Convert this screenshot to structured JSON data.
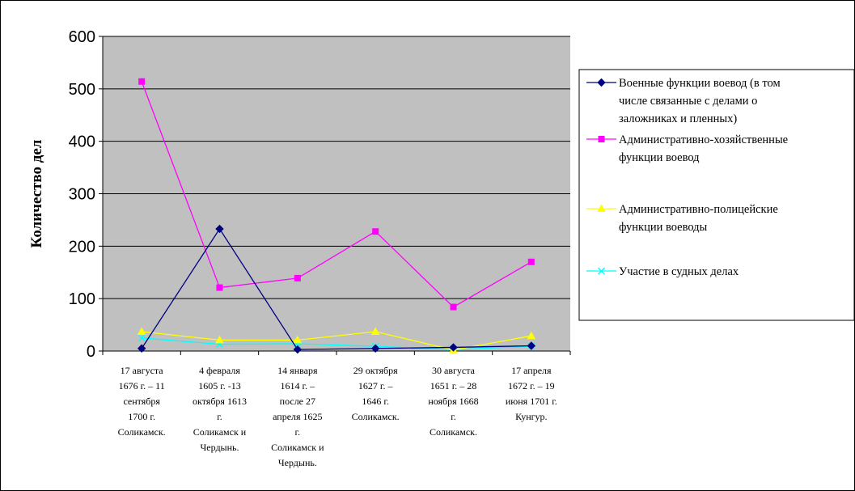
{
  "chart_data": {
    "type": "line",
    "title": "",
    "xlabel": "",
    "ylabel": "Количество дел",
    "ylim": [
      0,
      600
    ],
    "yticks": [
      0,
      100,
      200,
      300,
      400,
      500,
      600
    ],
    "grid": true,
    "legend_position": "right",
    "plot_background": "#c0c0c0",
    "categories": [
      [
        "17 августа",
        "1676 г. – 11",
        "сентября",
        "1700 г.",
        "Соликамск."
      ],
      [
        "4 февраля",
        "1605 г. -13",
        "октября 1613",
        "г.",
        "Соликамск и",
        "Чердынь."
      ],
      [
        "14 января",
        "1614 г. –",
        "после 27",
        "апреля 1625",
        "г.",
        "Соликамск и",
        "Чердынь."
      ],
      [
        "29 октября",
        "1627 г. –",
        "1646 г.",
        "Соликамск."
      ],
      [
        "30 августа",
        "1651 г. – 28",
        "ноября 1668",
        "г.",
        "Соликамск."
      ],
      [
        "17 апреля",
        "1672 г. – 19",
        "июня 1701 г.",
        "Кунгур."
      ]
    ],
    "series": [
      {
        "name": "Военные функции воевод (в том числе связанные с делами о заложниках и пленных)",
        "legend_lines": [
          "Военные функции воевод (в том",
          "числе связанные с делами о",
          "заложниках и пленных)"
        ],
        "color": "#000080",
        "marker": "diamond",
        "values": [
          5,
          233,
          3,
          5,
          7,
          10
        ]
      },
      {
        "name": "Административно-хозяйственные функции воевод",
        "legend_lines": [
          "Административно-хозяйственные",
          "функции воевод"
        ],
        "color": "#ff00ff",
        "marker": "square",
        "values": [
          514,
          121,
          139,
          228,
          84,
          170
        ]
      },
      {
        "name": "Административно-полицейские функции воеводы",
        "legend_lines": [
          "Административно-полицейские",
          "функции воеводы"
        ],
        "color": "#ffff00",
        "marker": "triangle",
        "values": [
          37,
          21,
          21,
          37,
          2,
          29
        ]
      },
      {
        "name": "Участие в судных делах",
        "legend_lines": [
          "Участие в судных делах"
        ],
        "color": "#00ffff",
        "marker": "x",
        "values": [
          25,
          13,
          14,
          9,
          3,
          9
        ]
      }
    ]
  }
}
